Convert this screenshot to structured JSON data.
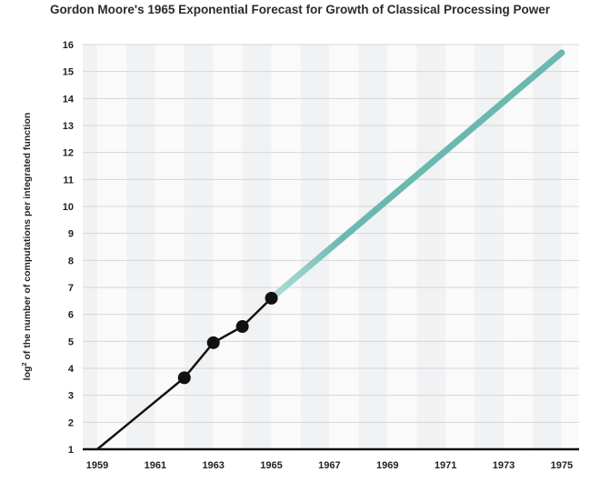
{
  "chart_data": {
    "type": "line",
    "title": "Gordon Moore's 1965 Exponential Forecast for Growth of Classical Processing Power",
    "xlabel": "",
    "ylabel": "log² of the number of computations per integrated function",
    "ylabel_main": "log",
    "ylabel_sup": "2",
    "ylabel_rest": " of the number of computations per integrated function",
    "xlim": [
      1958.5,
      1975.6
    ],
    "ylim": [
      1,
      16
    ],
    "x_ticks": [
      "1959",
      "1961",
      "1963",
      "1965",
      "1967",
      "1969",
      "1971",
      "1973",
      "1975"
    ],
    "y_ticks": [
      "1",
      "2",
      "3",
      "4",
      "5",
      "6",
      "7",
      "8",
      "9",
      "10",
      "11",
      "12",
      "13",
      "14",
      "15",
      "16"
    ],
    "grid": true,
    "background": "alternating vertical bands",
    "series": [
      {
        "kind": "observed",
        "color": "#111111",
        "x": [
          1959,
          1962,
          1963,
          1964,
          1965
        ],
        "y": [
          1.0,
          3.65,
          4.95,
          5.55,
          6.6
        ],
        "marker_points": [
          {
            "x": 1962,
            "y": 3.65
          },
          {
            "x": 1963,
            "y": 4.95
          },
          {
            "x": 1964,
            "y": 5.55
          },
          {
            "x": 1965,
            "y": 6.6
          }
        ]
      },
      {
        "kind": "forecast",
        "color": "#6bb8b0",
        "color_start": "#b3dcd8",
        "x": [
          1965,
          1975
        ],
        "y": [
          6.6,
          15.7
        ]
      }
    ]
  }
}
